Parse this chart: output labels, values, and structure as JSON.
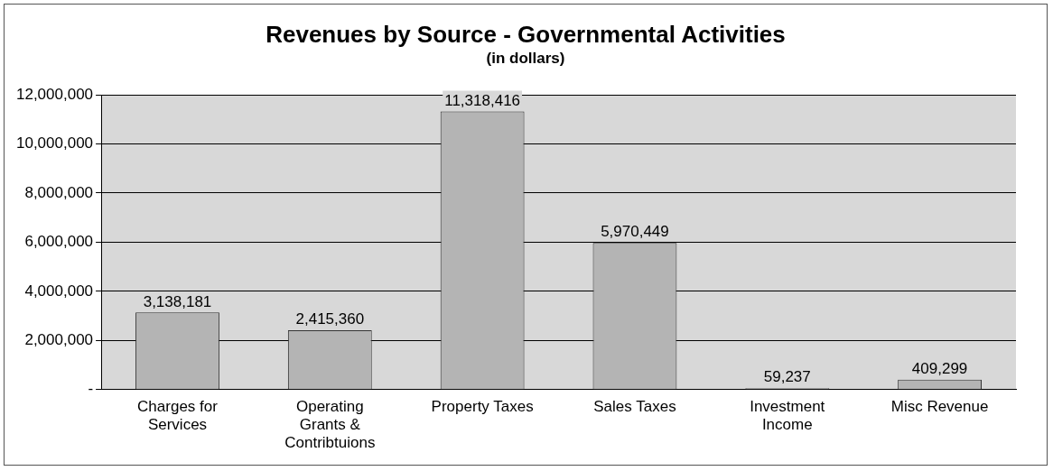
{
  "chart_data": {
    "type": "bar",
    "title": "Revenues by Source - Governmental Activities",
    "subtitle": "(in dollars)",
    "categories": [
      "Charges for Services",
      "Operating Grants & Contribtuions",
      "Property Taxes",
      "Sales Taxes",
      "Investment Income",
      "Misc Revenue"
    ],
    "values": [
      3138181,
      2415360,
      11318416,
      5970449,
      59237,
      409299
    ],
    "value_labels": [
      "3,138,181",
      "2,415,360",
      "11,318,416",
      "5,970,449",
      "59,237",
      "409,299"
    ],
    "color": "#b4b4b4",
    "ylim": [
      0,
      12000000
    ],
    "yticks": [
      {
        "value": 0,
        "label": "-"
      },
      {
        "value": 2000000,
        "label": "2,000,000"
      },
      {
        "value": 4000000,
        "label": "4,000,000"
      },
      {
        "value": 6000000,
        "label": "6,000,000"
      },
      {
        "value": 8000000,
        "label": "8,000,000"
      },
      {
        "value": 10000000,
        "label": "10,000,000"
      },
      {
        "value": 12000000,
        "label": "12,000,000"
      }
    ],
    "grid": "y",
    "legend": false
  }
}
